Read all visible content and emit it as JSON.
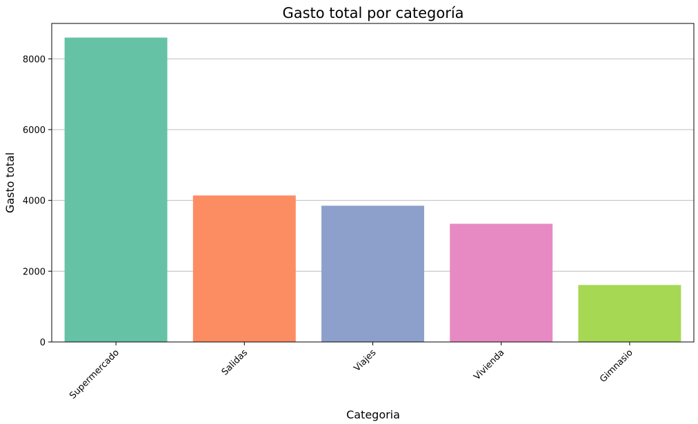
{
  "chart_data": {
    "type": "bar",
    "title": "Gasto total por categoría",
    "xlabel": "Categoria",
    "ylabel": "Gasto total",
    "categories": [
      "Supermercado",
      "Salidas",
      "Viajes",
      "Vivienda",
      "Gimnasio"
    ],
    "values": [
      8600,
      4140,
      3850,
      3340,
      1610
    ],
    "colors": [
      "#66c2a5",
      "#fc8d62",
      "#8da0cb",
      "#e78ac3",
      "#a6d854"
    ],
    "ylim": [
      0,
      9000
    ],
    "yticks": [
      0,
      2000,
      4000,
      6000,
      8000
    ],
    "grid": "y",
    "x_tick_rotation": 45
  }
}
